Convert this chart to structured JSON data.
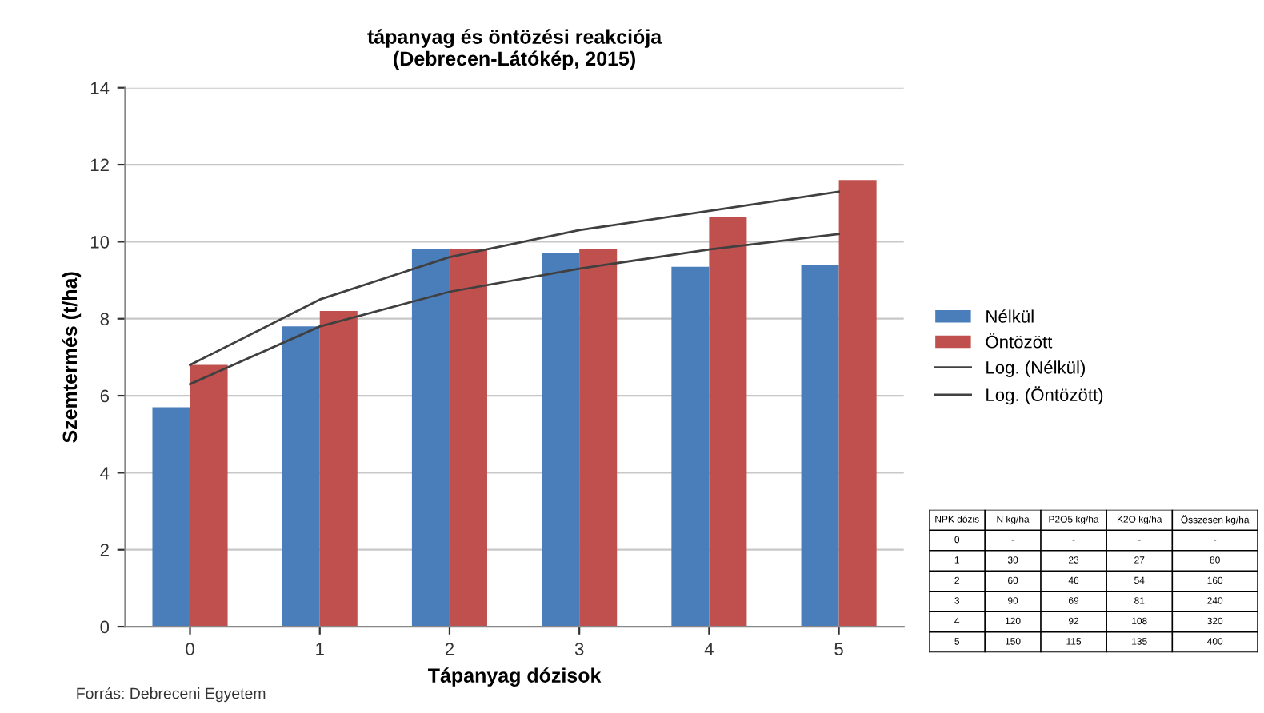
{
  "chart_data": {
    "type": "bar",
    "title": "tápanyag és öntözési reakciója\n(Debrecen-Látókép, 2015)",
    "xlabel": "Tápanyag dózisok",
    "ylabel": "Szemtermés (t/ha)",
    "categories": [
      "0",
      "1",
      "2",
      "3",
      "4",
      "5"
    ],
    "series": [
      {
        "name": "Nélkül",
        "color": "#4a7ebb",
        "values": [
          5.7,
          7.8,
          9.8,
          9.7,
          9.35,
          9.4
        ]
      },
      {
        "name": "Öntözött",
        "color": "#c0504d",
        "values": [
          6.8,
          8.2,
          9.8,
          9.8,
          10.65,
          11.6
        ]
      },
      {
        "name": "Log. (Nélkül)",
        "type": "line",
        "color": "#404040",
        "values": [
          6.3,
          7.8,
          8.7,
          9.3,
          9.8,
          10.2
        ]
      },
      {
        "name": "Log. (Öntözött)",
        "type": "line",
        "color": "#404040",
        "values": [
          6.8,
          8.5,
          9.6,
          10.3,
          10.8,
          11.3
        ]
      }
    ],
    "ylim": [
      0,
      14
    ],
    "yticks": [
      0,
      2,
      4,
      6,
      8,
      10,
      12,
      14
    ],
    "grid": "y",
    "legend": "right",
    "annotations": [
      "Forrás: Debreceni Egyetem",
      "NPK dózis",
      "N kg/ha",
      "P2O5 kg/ha",
      "K2O kg/ha",
      "Összesen kg/ha",
      "0",
      "-",
      "-",
      "-",
      "-",
      "1",
      "30",
      "23",
      "27",
      "80",
      "2",
      "60",
      "46",
      "54",
      "160",
      "3",
      "90",
      "69",
      "81",
      "240",
      "4",
      "120",
      "92",
      "108",
      "320",
      "5",
      "150",
      "115",
      "135",
      "400"
    ]
  }
}
